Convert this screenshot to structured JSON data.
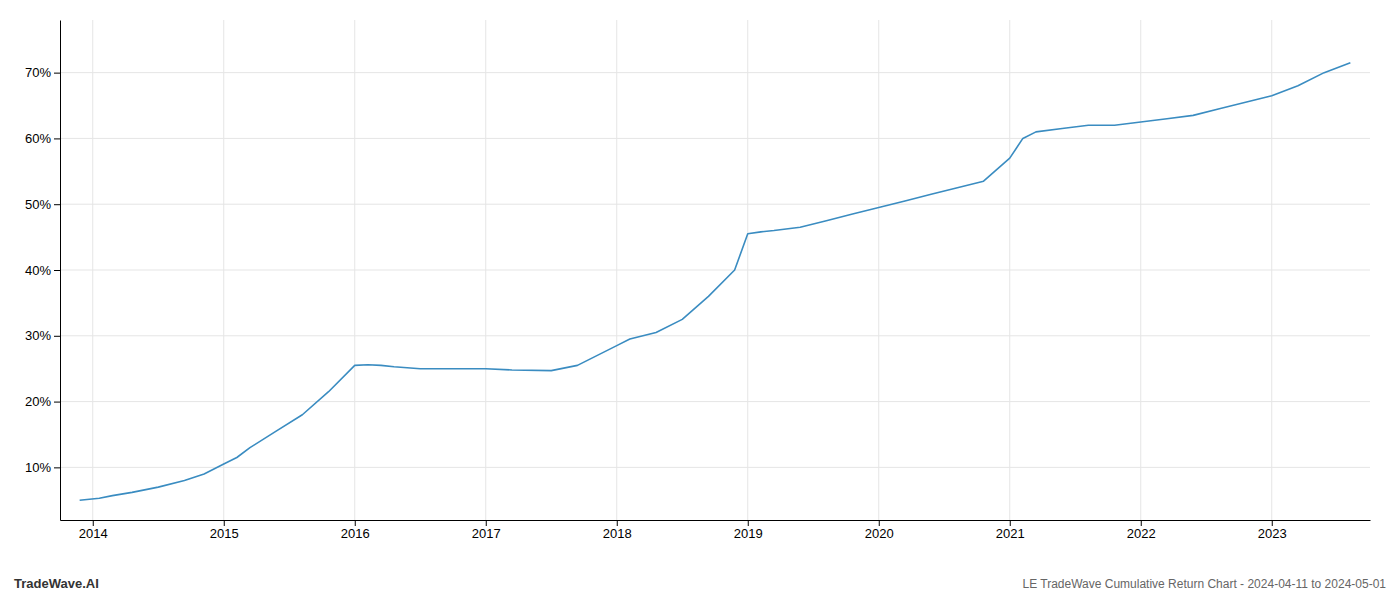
{
  "chart_data": {
    "type": "line",
    "title": "LE TradeWave Cumulative Return Chart - 2024-04-11 to 2024-05-01",
    "annotations": [
      "TradeWave.AI"
    ],
    "color": "#3a8cc1",
    "grid": true,
    "x": [
      2013.9,
      2014.05,
      2014.15,
      2014.3,
      2014.5,
      2014.7,
      2014.85,
      2015.0,
      2015.1,
      2015.2,
      2015.4,
      2015.6,
      2015.8,
      2016.0,
      2016.1,
      2016.2,
      2016.3,
      2016.5,
      2016.7,
      2016.9,
      2017.0,
      2017.2,
      2017.5,
      2017.7,
      2018.0,
      2018.1,
      2018.2,
      2018.3,
      2018.5,
      2018.7,
      2018.9,
      2019.0,
      2019.1,
      2019.2,
      2019.4,
      2019.6,
      2019.8,
      2020.0,
      2020.1,
      2020.2,
      2020.4,
      2020.6,
      2020.8,
      2021.0,
      2021.1,
      2021.2,
      2021.4,
      2021.6,
      2021.8,
      2022.0,
      2022.2,
      2022.4,
      2022.6,
      2022.8,
      2023.0,
      2023.2,
      2023.4,
      2023.6
    ],
    "values": [
      5.0,
      5.3,
      5.7,
      6.2,
      7.0,
      8.0,
      9.0,
      10.5,
      11.5,
      13.0,
      15.5,
      18.0,
      21.5,
      25.5,
      25.6,
      25.5,
      25.3,
      25.0,
      25.0,
      25.0,
      25.0,
      24.8,
      24.7,
      25.5,
      28.5,
      29.5,
      30.0,
      30.5,
      32.5,
      36.0,
      40.0,
      45.5,
      45.8,
      46.0,
      46.5,
      47.5,
      48.5,
      49.5,
      50.0,
      50.5,
      51.5,
      52.5,
      53.5,
      57.0,
      60.0,
      61.0,
      61.5,
      62.0,
      62.0,
      62.5,
      63.0,
      63.5,
      64.5,
      65.5,
      66.5,
      68.0,
      70.0,
      71.5
    ],
    "xlim": [
      2013.75,
      2023.75
    ],
    "ylim": [
      2,
      78
    ],
    "xticks": [
      2014,
      2015,
      2016,
      2017,
      2018,
      2019,
      2020,
      2021,
      2022,
      2023
    ],
    "yticks": [
      {
        "value": 10,
        "label": "10%"
      },
      {
        "value": 20,
        "label": "20%"
      },
      {
        "value": 30,
        "label": "30%"
      },
      {
        "value": 40,
        "label": "40%"
      },
      {
        "value": 50,
        "label": "50%"
      },
      {
        "value": 60,
        "label": "60%"
      },
      {
        "value": 70,
        "label": "70%"
      }
    ]
  }
}
